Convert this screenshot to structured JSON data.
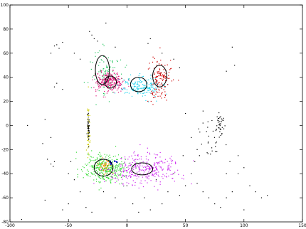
{
  "chart_data": {
    "type": "scatter",
    "title": "",
    "xlabel": "",
    "ylabel": "",
    "xlim": [
      -100,
      150
    ],
    "ylim": [
      -80,
      100
    ],
    "grid": false,
    "legend": "none",
    "xticks": [
      -100,
      -50,
      0,
      50,
      100,
      150
    ],
    "yticks": [
      -80,
      -60,
      -40,
      -20,
      0,
      20,
      40,
      60,
      80,
      100
    ],
    "xtick_labels": [
      "-100",
      "-50",
      "0",
      "50",
      "100",
      "150"
    ],
    "ytick_labels": [
      "-80",
      "-60",
      "-40",
      "-20",
      "0",
      "20",
      "40",
      "60",
      "80",
      "100"
    ],
    "clusters": [
      {
        "color": "#22c55e",
        "cx": -18,
        "cy": 45,
        "sx": 7,
        "sy": 10,
        "n": 110
      },
      {
        "color": "#e0187a",
        "cx": -15,
        "cy": 36,
        "sx": 6,
        "sy": 4,
        "n": 260
      },
      {
        "color": "#22d3ee",
        "cx": 12,
        "cy": 33,
        "sx": 9,
        "sy": 4,
        "n": 200
      },
      {
        "color": "#cc0000",
        "cx": 28,
        "cy": 38,
        "sx": 5,
        "sy": 9,
        "n": 140
      },
      {
        "color": "#33dd33",
        "cx": -18,
        "cy": -36,
        "sx": 9,
        "sy": 6,
        "n": 360
      },
      {
        "color": "#ff8c00",
        "cx": -18,
        "cy": -34,
        "sx": 3,
        "sy": 3,
        "n": 50
      },
      {
        "color": "#cc22ee",
        "cx": 14,
        "cy": -36,
        "sx": 16,
        "sy": 6,
        "n": 320
      },
      {
        "color": "#0000cc",
        "cx": -12,
        "cy": -30,
        "sx": 2,
        "sy": 1,
        "n": 6
      },
      {
        "color": "#cccc00",
        "cx": -33,
        "cy": -4,
        "sx": 0.6,
        "sy": 12,
        "n": 50
      },
      {
        "color": "#000000",
        "cx": -33,
        "cy": -2,
        "sx": 0.4,
        "sy": 5,
        "n": 40
      },
      {
        "color": "#000000",
        "cx": 79,
        "cy": 2,
        "sx": 2,
        "sy": 5,
        "n": 35
      },
      {
        "color": "#000000",
        "cx": 70,
        "cy": -12,
        "sx": 6,
        "sy": 12,
        "n": 25
      }
    ],
    "outliers": [
      [
        -60,
        67
      ],
      [
        -62,
        66
      ],
      [
        -55,
        69
      ],
      [
        -58,
        64
      ],
      [
        -65,
        60
      ],
      [
        -32,
        78
      ],
      [
        -30,
        75
      ],
      [
        -28,
        72
      ],
      [
        -18,
        85
      ],
      [
        -25,
        70
      ],
      [
        -10,
        65
      ],
      [
        20,
        72
      ],
      [
        18,
        68
      ],
      [
        30,
        60
      ],
      [
        40,
        55
      ],
      [
        45,
        48
      ],
      [
        -60,
        35
      ],
      [
        -55,
        30
      ],
      [
        -62,
        32
      ],
      [
        -40,
        55
      ],
      [
        -45,
        60
      ],
      [
        90,
        65
      ],
      [
        92,
        50
      ],
      [
        85,
        45
      ],
      [
        -85,
        0
      ],
      [
        -70,
        5
      ],
      [
        -65,
        -10
      ],
      [
        -72,
        -15
      ],
      [
        -62,
        -30
      ],
      [
        -65,
        -32
      ],
      [
        -63,
        -34
      ],
      [
        -68,
        -28
      ],
      [
        -48,
        -30
      ],
      [
        -50,
        -40
      ],
      [
        -45,
        -45
      ],
      [
        -40,
        -55
      ],
      [
        -50,
        -65
      ],
      [
        -55,
        -70
      ],
      [
        -90,
        -78
      ],
      [
        -70,
        -62
      ],
      [
        -35,
        -68
      ],
      [
        -30,
        -72
      ],
      [
        15,
        -60
      ],
      [
        20,
        -70
      ],
      [
        10,
        -72
      ],
      [
        30,
        -65
      ],
      [
        35,
        -55
      ],
      [
        45,
        -58
      ],
      [
        50,
        -50
      ],
      [
        55,
        -40
      ],
      [
        60,
        -48
      ],
      [
        65,
        -55
      ],
      [
        70,
        -60
      ],
      [
        75,
        -65
      ],
      [
        80,
        -68
      ],
      [
        85,
        -60
      ],
      [
        90,
        -55
      ],
      [
        95,
        -40
      ],
      [
        100,
        -35
      ],
      [
        105,
        -50
      ],
      [
        110,
        -55
      ],
      [
        115,
        -60
      ],
      [
        85,
        -40
      ],
      [
        88,
        -30
      ],
      [
        95,
        -25
      ],
      [
        60,
        -20
      ],
      [
        62,
        -25
      ],
      [
        58,
        -30
      ],
      [
        68,
        -5
      ],
      [
        65,
        2
      ],
      [
        100,
        -70
      ],
      [
        120,
        -58
      ],
      [
        50,
        10
      ],
      [
        55,
        -10
      ],
      [
        48,
        -25
      ],
      [
        -20,
        -55
      ],
      [
        -10,
        -60
      ],
      [
        0,
        -50
      ],
      [
        5,
        -65
      ],
      [
        25,
        -45
      ],
      [
        40,
        -40
      ]
    ],
    "ellipses": [
      {
        "cx": -21,
        "cy": 46,
        "rx": 6,
        "ry": 12
      },
      {
        "cx": -14,
        "cy": 36,
        "rx": 5,
        "ry": 5
      },
      {
        "cx": 10,
        "cy": 34,
        "rx": 7,
        "ry": 6
      },
      {
        "cx": 28,
        "cy": 41,
        "rx": 6,
        "ry": 9
      },
      {
        "cx": -20,
        "cy": -35,
        "rx": 8,
        "ry": 7
      },
      {
        "cx": 13,
        "cy": -36,
        "rx": 9,
        "ry": 5
      }
    ]
  }
}
